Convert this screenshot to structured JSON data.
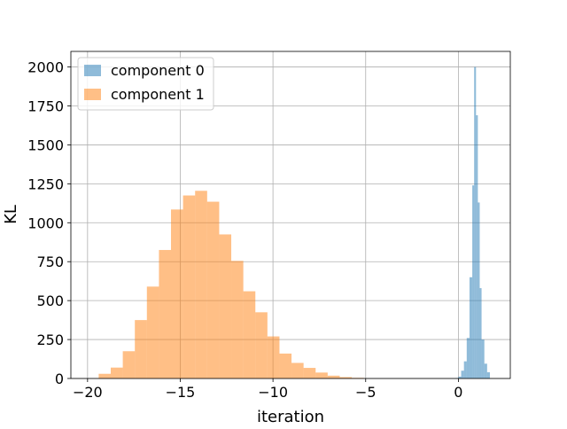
{
  "chart_data": {
    "type": "histogram",
    "title": "",
    "xlabel": "iteration",
    "ylabel": "KL",
    "xlim": [
      -20.9,
      2.8
    ],
    "ylim": [
      0,
      2100
    ],
    "x_ticks": [
      -20,
      -15,
      -10,
      -5,
      0
    ],
    "x_tick_labels": [
      "−20",
      "−15",
      "−10",
      "−5",
      "0"
    ],
    "y_ticks": [
      0,
      250,
      500,
      750,
      1000,
      1250,
      1500,
      1750,
      2000
    ],
    "y_tick_labels": [
      "0",
      "250",
      "500",
      "750",
      "1000",
      "1250",
      "1500",
      "1750",
      "2000"
    ],
    "grid": true,
    "legend_position": "top-left",
    "series": [
      {
        "name": "component 0",
        "color": "#1f77b4",
        "alpha": 0.5,
        "bins": [
          {
            "x0": -0.15,
            "x1": 0.0,
            "count": 3
          },
          {
            "x0": 0.0,
            "x1": 0.15,
            "count": 12
          },
          {
            "x0": 0.15,
            "x1": 0.3,
            "count": 50
          },
          {
            "x0": 0.3,
            "x1": 0.45,
            "count": 110
          },
          {
            "x0": 0.45,
            "x1": 0.6,
            "count": 260
          },
          {
            "x0": 0.6,
            "x1": 0.75,
            "count": 650
          },
          {
            "x0": 0.75,
            "x1": 0.85,
            "count": 1240
          },
          {
            "x0": 0.85,
            "x1": 0.95,
            "count": 2000
          },
          {
            "x0": 0.95,
            "x1": 1.05,
            "count": 1690
          },
          {
            "x0": 1.05,
            "x1": 1.15,
            "count": 1130
          },
          {
            "x0": 1.15,
            "x1": 1.25,
            "count": 580
          },
          {
            "x0": 1.25,
            "x1": 1.4,
            "count": 250
          },
          {
            "x0": 1.4,
            "x1": 1.55,
            "count": 95
          },
          {
            "x0": 1.55,
            "x1": 1.7,
            "count": 40
          }
        ]
      },
      {
        "name": "component 1",
        "color": "#ff7f0e",
        "alpha": 0.5,
        "bins": [
          {
            "x0": -19.4,
            "x1": -18.75,
            "count": 30
          },
          {
            "x0": -18.75,
            "x1": -18.1,
            "count": 70
          },
          {
            "x0": -18.1,
            "x1": -17.45,
            "count": 175
          },
          {
            "x0": -17.45,
            "x1": -16.8,
            "count": 375
          },
          {
            "x0": -16.8,
            "x1": -16.15,
            "count": 590
          },
          {
            "x0": -16.15,
            "x1": -15.5,
            "count": 825
          },
          {
            "x0": -15.5,
            "x1": -14.85,
            "count": 1085
          },
          {
            "x0": -14.85,
            "x1": -14.2,
            "count": 1175
          },
          {
            "x0": -14.2,
            "x1": -13.55,
            "count": 1205
          },
          {
            "x0": -13.55,
            "x1": -12.9,
            "count": 1135
          },
          {
            "x0": -12.9,
            "x1": -12.25,
            "count": 925
          },
          {
            "x0": -12.25,
            "x1": -11.6,
            "count": 755
          },
          {
            "x0": -11.6,
            "x1": -10.95,
            "count": 560
          },
          {
            "x0": -10.95,
            "x1": -10.3,
            "count": 425
          },
          {
            "x0": -10.3,
            "x1": -9.65,
            "count": 270
          },
          {
            "x0": -9.65,
            "x1": -9.0,
            "count": 160
          },
          {
            "x0": -9.0,
            "x1": -8.35,
            "count": 100
          },
          {
            "x0": -8.35,
            "x1": -7.7,
            "count": 68
          },
          {
            "x0": -7.7,
            "x1": -7.05,
            "count": 38
          },
          {
            "x0": -7.05,
            "x1": -6.4,
            "count": 18
          },
          {
            "x0": -6.4,
            "x1": -5.75,
            "count": 9
          },
          {
            "x0": -5.75,
            "x1": -5.1,
            "count": 4
          }
        ]
      }
    ]
  }
}
